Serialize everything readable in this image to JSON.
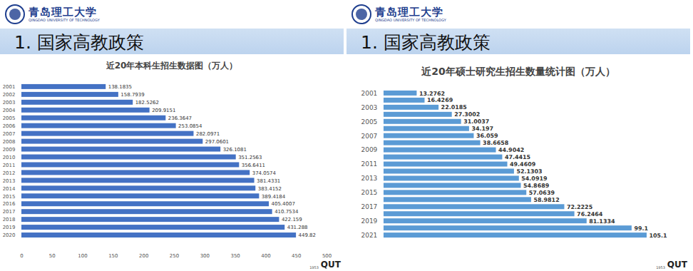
{
  "header": {
    "school": "青岛理工大学",
    "school_en": "QINGDAO UNIVERSITY OF TECHNOLOGY",
    "heading": "1. 国家高教政策",
    "footer": "QUT",
    "founded": "1953"
  },
  "chart_data": [
    {
      "type": "bar",
      "orientation": "horizontal",
      "title": "近20年本科生招生数据图（万人）",
      "categories": [
        "2001",
        "2002",
        "2003",
        "2004",
        "2005",
        "2006",
        "2007",
        "2008",
        "2009",
        "2010",
        "2011",
        "2012",
        "2013",
        "2014",
        "2015",
        "2016",
        "2017",
        "2018",
        "2019",
        "2020"
      ],
      "values": [
        138.1835,
        158.7939,
        182.5262,
        209.9151,
        236.3647,
        253.0854,
        282.0971,
        297.0601,
        326.1081,
        351.2563,
        356.6411,
        374.0574,
        381.4331,
        383.4152,
        389.4184,
        405.4007,
        410.7534,
        422.159,
        431.288,
        449.82
      ],
      "color": "#4472c4",
      "xlim": [
        0,
        500
      ],
      "xticks": [
        0,
        50,
        100,
        150,
        200,
        250,
        300,
        350,
        400,
        450,
        500
      ],
      "data_labels": true,
      "grid": false
    },
    {
      "type": "bar",
      "orientation": "horizontal",
      "title": "近20年硕士研究生招生数量统计图（万人）",
      "categories": [
        "2001",
        null,
        "2003",
        null,
        "2005",
        null,
        "2007",
        null,
        "2009",
        null,
        "2011",
        null,
        "2013",
        null,
        "2015",
        null,
        "2017",
        null,
        "2019",
        null,
        "2021"
      ],
      "values": [
        13.2762,
        16.4269,
        22.0185,
        27.3002,
        31.0037,
        34.197,
        36.059,
        38.6658,
        44.9042,
        47.4415,
        49.4609,
        52.1303,
        54.0919,
        54.8689,
        57.0639,
        58.9812,
        72.2225,
        76.2464,
        81.1334,
        99.1,
        105.1
      ],
      "color": "#5b9bd5",
      "xlim": [
        0,
        110
      ],
      "data_labels": true,
      "tick_labels": "y",
      "grid": false
    }
  ]
}
